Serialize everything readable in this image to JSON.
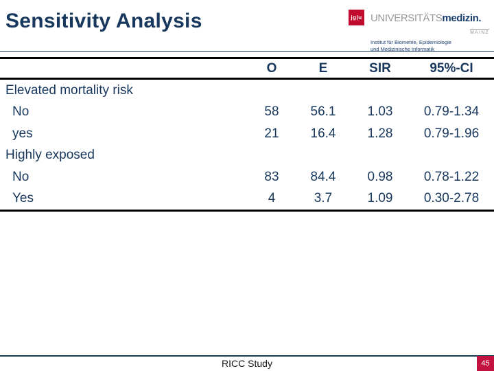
{
  "slide": {
    "title": "Sensitivity Analysis",
    "footer": {
      "study": "RICC Study",
      "page": "45"
    }
  },
  "logo": {
    "square_text": "jg|u",
    "brand_gray": "UNIVERSITÄTS",
    "brand_bold": "medizin.",
    "city": "MAINZ",
    "institute_line1": "Institut für Biometrie, Epidemiologie",
    "institute_line2": "und Medizinische Informatik"
  },
  "table": {
    "columns": [
      "O",
      "E",
      "SIR",
      "95%-CI"
    ],
    "groups": [
      {
        "label": "Elevated mortality risk",
        "rows": [
          {
            "label": "No",
            "values": [
              "58",
              "56.1",
              "1.03",
              "0.79-1.34"
            ]
          },
          {
            "label": "yes",
            "values": [
              "21",
              "16.4",
              "1.28",
              "0.79-1.96"
            ]
          }
        ]
      },
      {
        "label": "Highly exposed",
        "rows": [
          {
            "label": "No",
            "values": [
              "83",
              "84.4",
              "0.98",
              "0.78-1.22"
            ]
          },
          {
            "label": "Yes",
            "values": [
              "4",
              "3.7",
              "1.09",
              "0.30-2.78"
            ]
          }
        ]
      }
    ]
  },
  "colors": {
    "text_navy": "#17375d",
    "rule_black": "#000000",
    "footer_rule": "#163d4e",
    "logo_red": "#c10b2e",
    "badge_red": "#c41240",
    "brand_gray": "#9a9a9a"
  }
}
